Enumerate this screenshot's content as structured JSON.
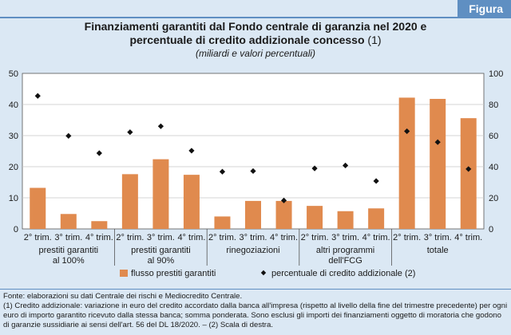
{
  "header": {
    "tag": "Figura",
    "title_line1": "Finanziamenti garantiti dal Fondo centrale di garanzia nel 2020 e",
    "title_line2": "percentuale di credito addizionale concesso",
    "title_note": "(1)",
    "subtitle": "(miliardi e valori percentuali)"
  },
  "colors": {
    "bar": "#e08a4e",
    "marker": "#111111",
    "background": "#dbe8f4",
    "accent": "#5f8fc2"
  },
  "chart_data": {
    "type": "bar",
    "categories": [
      "2° trim.",
      "3° trim.",
      "4° trim.",
      "2° trim.",
      "3° trim.",
      "4° trim.",
      "2° trim.",
      "3° trim.",
      "4° trim.",
      "2° trim.",
      "3° trim.",
      "4° trim.",
      "2° trim.",
      "3° trim.",
      "4° trim."
    ],
    "groups": [
      {
        "label_lines": [
          "prestiti garantiti",
          "al 100%"
        ]
      },
      {
        "label_lines": [
          "prestiti garantiti",
          "al 90%"
        ]
      },
      {
        "label_lines": [
          "rinegoziazioni"
        ]
      },
      {
        "label_lines": [
          "altri programmi",
          "dell'FCG"
        ]
      },
      {
        "label_lines": [
          "totale"
        ]
      }
    ],
    "series": [
      {
        "name": "flusso prestiti garantiti",
        "type": "bar",
        "axis": "left",
        "values": [
          13.2,
          4.8,
          2.5,
          17.6,
          22.4,
          17.4,
          4.0,
          9.0,
          9.0,
          7.4,
          5.7,
          6.6,
          42.2,
          41.8,
          35.6
        ]
      },
      {
        "name": "percentuale di credito addizionale (2)",
        "type": "scatter",
        "axis": "right",
        "values": [
          85.5,
          59.8,
          48.7,
          62.2,
          66.0,
          50.3,
          36.8,
          37.2,
          18.3,
          38.9,
          40.8,
          30.8,
          62.8,
          55.8,
          38.5
        ]
      }
    ],
    "y_left": {
      "min": 0,
      "max": 50,
      "ticks": [
        0,
        10,
        20,
        30,
        40,
        50
      ]
    },
    "y_right": {
      "min": 0,
      "max": 100,
      "ticks": [
        0,
        20,
        40,
        60,
        80,
        100
      ]
    },
    "grid": true,
    "legend_position": "bottom"
  },
  "notes": {
    "source": "Fonte: elaborazioni su dati Centrale dei rischi e Mediocredito Centrale.",
    "note1": "(1) Credito addizionale: variazione in euro del credito accordato dalla banca all'impresa (rispetto al livello della fine del trimestre precedente) per ogni euro di importo garantito ricevuto dalla stessa banca; somma ponderata. Sono esclusi gli importi dei finanziamenti oggetto di moratoria che godono di garanzie sussidiarie ai sensi dell'art. 56 del DL 18/2020. – (2) Scala di destra."
  }
}
